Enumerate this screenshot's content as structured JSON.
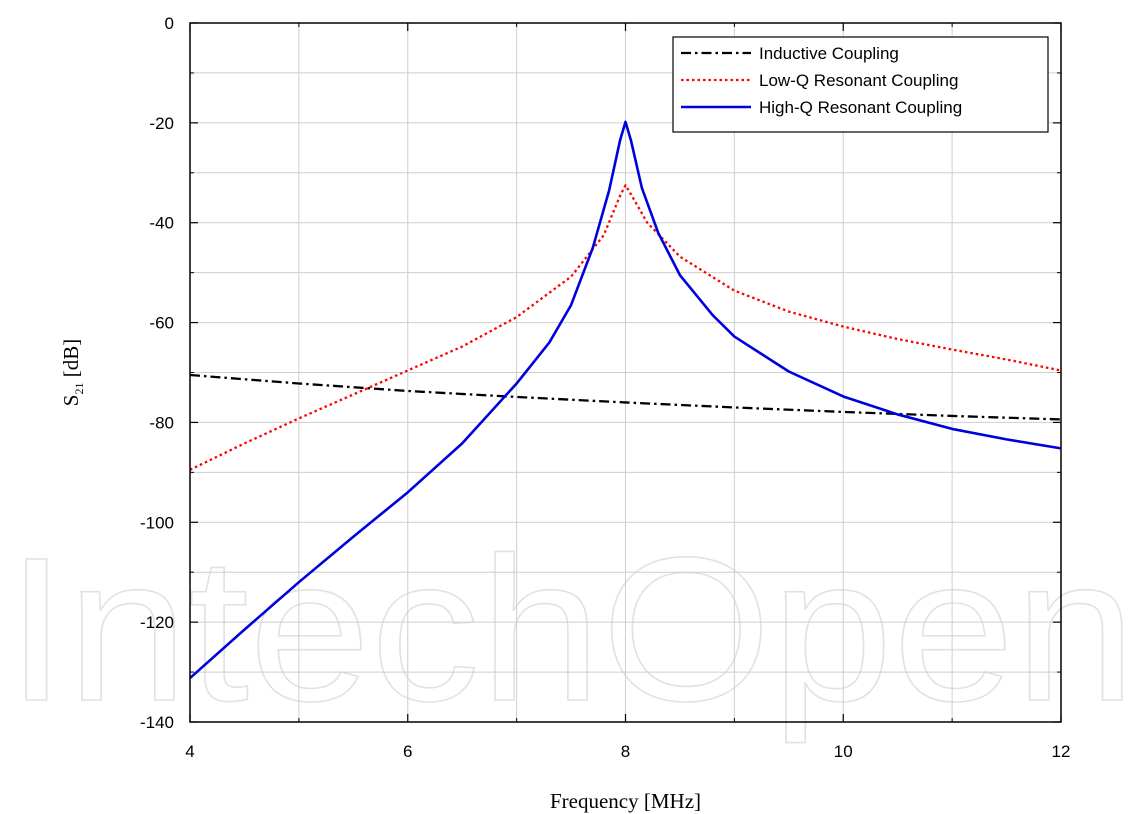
{
  "watermark": "IntechOpen",
  "chart_data": {
    "type": "line",
    "xlabel": "Frequency [MHz]",
    "ylabel": {
      "main": "S",
      "sub": "21",
      "unit": " [dB]"
    },
    "xlim": [
      4,
      12
    ],
    "ylim": [
      -140,
      0
    ],
    "xticks": [
      4,
      6,
      8,
      10,
      12
    ],
    "yticks": [
      0,
      -20,
      -40,
      -60,
      -80,
      -100,
      -120,
      -140
    ],
    "grid": true,
    "legend_position": "top-right",
    "series": [
      {
        "name": "Inductive Coupling",
        "color": "#000000",
        "dash": "dashdot",
        "x": [
          4,
          5,
          6,
          7,
          8,
          9,
          10,
          11,
          12
        ],
        "y": [
          -70.5,
          -72.2,
          -73.7,
          -74.9,
          -76.0,
          -77.0,
          -77.9,
          -78.7,
          -79.4
        ]
      },
      {
        "name": "Low-Q Resonant Coupling",
        "color": "#ff0000",
        "dash": "dotted",
        "x": [
          4,
          4.5,
          5,
          5.5,
          6,
          6.5,
          7,
          7.5,
          7.8,
          7.95,
          8,
          8.05,
          8.2,
          8.5,
          9,
          9.5,
          10,
          10.5,
          11,
          11.5,
          12
        ],
        "y": [
          -89.5,
          -84.2,
          -79.2,
          -74.4,
          -69.6,
          -64.8,
          -58.9,
          -50.8,
          -42.5,
          -34.6,
          -32.5,
          -34.3,
          -40.0,
          -46.8,
          -53.6,
          -57.8,
          -60.8,
          -63.3,
          -65.4,
          -67.4,
          -69.6
        ]
      },
      {
        "name": "High-Q Resonant Coupling",
        "color": "#0000dd",
        "dash": "solid",
        "x": [
          4,
          4.5,
          5,
          5.5,
          6,
          6.5,
          7,
          7.3,
          7.5,
          7.7,
          7.85,
          7.95,
          8,
          8.05,
          8.15,
          8.3,
          8.5,
          8.8,
          9,
          9.5,
          10,
          10.5,
          11,
          11.5,
          12
        ],
        "y": [
          -131.2,
          -121.5,
          -112.0,
          -102.9,
          -94.0,
          -84.2,
          -72.2,
          -64.0,
          -56.5,
          -45.0,
          -33.5,
          -23.5,
          -19.8,
          -23.5,
          -33.0,
          -42.0,
          -50.5,
          -58.5,
          -62.8,
          -69.8,
          -74.8,
          -78.4,
          -81.3,
          -83.4,
          -85.2
        ]
      }
    ]
  }
}
